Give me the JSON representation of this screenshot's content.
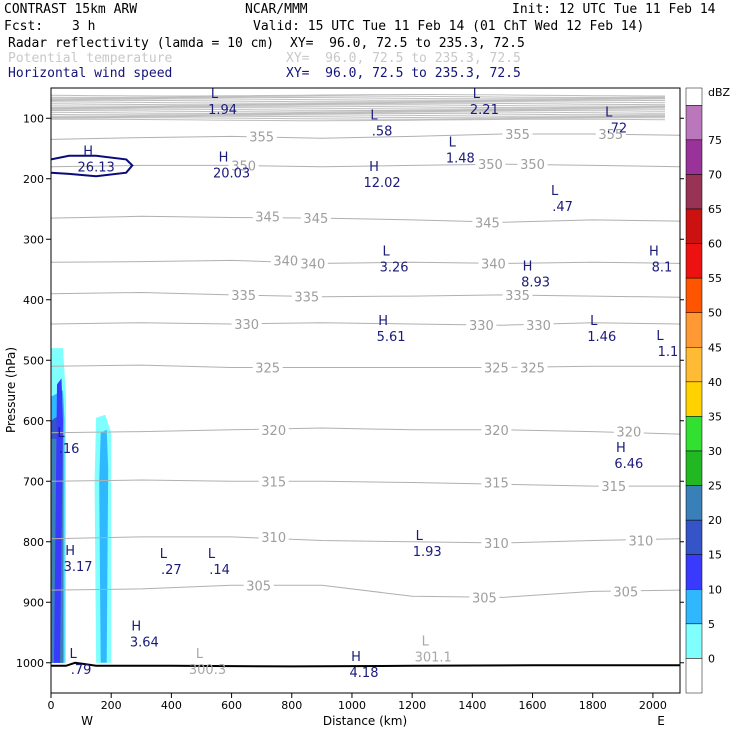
{
  "header": {
    "model": "CONTRAST 15km ARW",
    "org": "NCAR/MMM",
    "init": "Init: 12 UTC Tue 11 Feb 14",
    "fcst_label": "Fcst:",
    "fcst_value": "3 h",
    "valid": "Valid: 15 UTC Tue 11 Feb 14 (01 ChT Wed 12 Feb 14)",
    "fields": [
      {
        "name": "Radar reflectivity (lamda = 10 cm)",
        "xy": "XY=  96.0, 72.5 to 235.3, 72.5",
        "color": "#000000"
      },
      {
        "name": "Potential temperature",
        "xy": "XY=  96.0, 72.5 to 235.3, 72.5",
        "color": "#c8c8c8"
      },
      {
        "name": "Horizontal wind speed",
        "xy": "XY=  96.0, 72.5 to 235.3, 72.5",
        "color": "#14147a"
      }
    ]
  },
  "chart_data": {
    "type": "cross-section",
    "xlabel": "Distance (km)",
    "ylabel": "Pressure (hPa)",
    "xlim": [
      0,
      2090
    ],
    "ylim": [
      1050,
      50
    ],
    "xticks": [
      0,
      200,
      400,
      600,
      800,
      1000,
      1200,
      1400,
      1600,
      1800,
      2000
    ],
    "yticks": [
      100,
      200,
      300,
      400,
      500,
      600,
      700,
      800,
      900,
      1000
    ],
    "x_end_labels": {
      "left": "W",
      "right": "E"
    },
    "colorbar": {
      "unit": "dBZ",
      "levels": [
        0,
        5,
        10,
        15,
        20,
        25,
        30,
        35,
        40,
        45,
        50,
        55,
        60,
        65,
        70,
        75
      ],
      "colors": [
        "#ffffff",
        "#80ffff",
        "#30b8ff",
        "#3a3aff",
        "#3454c8",
        "#3a80b8",
        "#22b822",
        "#32e032",
        "#ffd200",
        "#ffbb33",
        "#ff9933",
        "#ff5500",
        "#ee1111",
        "#cc1111",
        "#993355",
        "#993399",
        "#bb77bb"
      ]
    },
    "isentropes": [
      {
        "value": 355,
        "points": [
          [
            0,
            135
          ],
          [
            300,
            132
          ],
          [
            600,
            130
          ],
          [
            900,
            133
          ],
          [
            1200,
            130
          ],
          [
            1500,
            126
          ],
          [
            1800,
            126
          ],
          [
            2090,
            128
          ]
        ],
        "labels": [
          [
            700,
            130
          ],
          [
            1550,
            126
          ],
          [
            1860,
            126
          ]
        ]
      },
      {
        "value": 350,
        "points": [
          [
            0,
            180
          ],
          [
            300,
            178
          ],
          [
            600,
            178
          ],
          [
            900,
            180
          ],
          [
            1200,
            178
          ],
          [
            1500,
            176
          ],
          [
            1800,
            178
          ],
          [
            2090,
            180
          ]
        ],
        "labels": [
          [
            640,
            178
          ],
          [
            1460,
            176
          ],
          [
            1600,
            176
          ]
        ]
      },
      {
        "value": 345,
        "points": [
          [
            0,
            265
          ],
          [
            300,
            262
          ],
          [
            600,
            264
          ],
          [
            900,
            265
          ],
          [
            1200,
            268
          ],
          [
            1500,
            272
          ],
          [
            1800,
            268
          ],
          [
            2090,
            270
          ]
        ],
        "labels": [
          [
            720,
            262
          ],
          [
            880,
            265
          ],
          [
            1450,
            272
          ]
        ]
      },
      {
        "value": 340,
        "points": [
          [
            0,
            338
          ],
          [
            300,
            337
          ],
          [
            600,
            335
          ],
          [
            900,
            340
          ],
          [
            1200,
            338
          ],
          [
            1500,
            340
          ],
          [
            1800,
            338
          ],
          [
            2090,
            340
          ]
        ],
        "labels": [
          [
            780,
            335
          ],
          [
            870,
            340
          ],
          [
            1470,
            340
          ]
        ]
      },
      {
        "value": 335,
        "points": [
          [
            0,
            390
          ],
          [
            300,
            388
          ],
          [
            600,
            392
          ],
          [
            900,
            395
          ],
          [
            1200,
            394
          ],
          [
            1500,
            392
          ],
          [
            1800,
            394
          ],
          [
            2090,
            396
          ]
        ],
        "labels": [
          [
            640,
            392
          ],
          [
            850,
            395
          ],
          [
            1550,
            392
          ]
        ]
      },
      {
        "value": 330,
        "points": [
          [
            0,
            440
          ],
          [
            300,
            438
          ],
          [
            600,
            440
          ],
          [
            900,
            438
          ],
          [
            1200,
            440
          ],
          [
            1500,
            442
          ],
          [
            1800,
            438
          ],
          [
            2090,
            440
          ]
        ],
        "labels": [
          [
            650,
            440
          ],
          [
            1430,
            442
          ],
          [
            1620,
            442
          ]
        ]
      },
      {
        "value": 325,
        "points": [
          [
            0,
            510
          ],
          [
            300,
            508
          ],
          [
            600,
            512
          ],
          [
            900,
            512
          ],
          [
            1200,
            512
          ],
          [
            1500,
            512
          ],
          [
            1800,
            510
          ],
          [
            2090,
            510
          ]
        ],
        "labels": [
          [
            720,
            512
          ],
          [
            1480,
            512
          ],
          [
            1600,
            512
          ]
        ]
      },
      {
        "value": 320,
        "points": [
          [
            0,
            620
          ],
          [
            300,
            618
          ],
          [
            600,
            615
          ],
          [
            900,
            612
          ],
          [
            1200,
            615
          ],
          [
            1500,
            615
          ],
          [
            1800,
            618
          ],
          [
            2090,
            622
          ]
        ],
        "labels": [
          [
            740,
            615
          ],
          [
            1480,
            615
          ],
          [
            1920,
            618
          ]
        ]
      },
      {
        "value": 315,
        "points": [
          [
            0,
            700
          ],
          [
            300,
            698
          ],
          [
            600,
            700
          ],
          [
            900,
            700
          ],
          [
            1200,
            702
          ],
          [
            1500,
            705
          ],
          [
            1800,
            708
          ],
          [
            2090,
            708
          ]
        ],
        "labels": [
          [
            740,
            700
          ],
          [
            1480,
            702
          ],
          [
            1870,
            708
          ]
        ]
      },
      {
        "value": 310,
        "points": [
          [
            0,
            795
          ],
          [
            300,
            792
          ],
          [
            600,
            792
          ],
          [
            900,
            798
          ],
          [
            1200,
            800
          ],
          [
            1500,
            802
          ],
          [
            1800,
            798
          ],
          [
            2090,
            795
          ]
        ],
        "labels": [
          [
            740,
            792
          ],
          [
            1480,
            802
          ],
          [
            1960,
            798
          ]
        ]
      },
      {
        "value": 305,
        "points": [
          [
            0,
            880
          ],
          [
            300,
            878
          ],
          [
            600,
            872
          ],
          [
            900,
            872
          ],
          [
            1200,
            890
          ],
          [
            1500,
            892
          ],
          [
            1800,
            882
          ],
          [
            2090,
            880
          ]
        ],
        "labels": [
          [
            690,
            872
          ],
          [
            1440,
            892
          ],
          [
            1910,
            882
          ]
        ]
      }
    ],
    "isentrope_labels_extra": [],
    "wind_labels": [
      {
        "type": "L",
        "value": "1.94",
        "x": 570,
        "p": 80
      },
      {
        "type": "L",
        "value": ".58",
        "x": 1100,
        "p": 115
      },
      {
        "type": "L",
        "value": "2.21",
        "x": 1440,
        "p": 80
      },
      {
        "type": "L",
        "value": ".72",
        "x": 1880,
        "p": 110
      },
      {
        "type": "H",
        "value": "26.13",
        "x": 150,
        "p": 175
      },
      {
        "type": "H",
        "value": "20.03",
        "x": 600,
        "p": 185
      },
      {
        "type": "L",
        "value": "1.48",
        "x": 1360,
        "p": 160
      },
      {
        "type": "H",
        "value": "12.02",
        "x": 1100,
        "p": 200
      },
      {
        "type": "L",
        "value": ".47",
        "x": 1700,
        "p": 240
      },
      {
        "type": "L",
        "value": "3.26",
        "x": 1140,
        "p": 340
      },
      {
        "type": "H",
        "value": "8.93",
        "x": 1610,
        "p": 365
      },
      {
        "type": "H",
        "value": "8.1",
        "x": 2030,
        "p": 340
      },
      {
        "type": "H",
        "value": "5.61",
        "x": 1130,
        "p": 455
      },
      {
        "type": "L",
        "value": "1.46",
        "x": 1830,
        "p": 455
      },
      {
        "type": "L",
        "value": "1.1",
        "x": 2050,
        "p": 480
      },
      {
        "type": "L",
        "value": ".16",
        "x": 60,
        "p": 640
      },
      {
        "type": "H",
        "value": "6.46",
        "x": 1920,
        "p": 665
      },
      {
        "type": "L",
        "value": "1.93",
        "x": 1250,
        "p": 810
      },
      {
        "type": "H",
        "value": "3.17",
        "x": 90,
        "p": 835
      },
      {
        "type": "L",
        "value": ".27",
        "x": 400,
        "p": 840
      },
      {
        "type": "L",
        "value": ".14",
        "x": 560,
        "p": 840
      },
      {
        "type": "H",
        "value": "3.64",
        "x": 310,
        "p": 960
      },
      {
        "type": "L",
        "value": ".79",
        "x": 100,
        "p": 1005
      },
      {
        "type": "H",
        "value": "4.18",
        "x": 1040,
        "p": 1010
      }
    ],
    "theta_labels": [
      {
        "type": "L",
        "value": "300.3",
        "x": 520,
        "p": 1005
      },
      {
        "type": "L",
        "value": "301.1",
        "x": 1270,
        "p": 985
      }
    ],
    "wind_contour_26": [
      [
        0,
        168
      ],
      [
        60,
        162
      ],
      [
        150,
        162
      ],
      [
        250,
        168
      ],
      [
        270,
        178
      ],
      [
        250,
        190
      ],
      [
        150,
        196
      ],
      [
        60,
        192
      ],
      [
        0,
        190
      ]
    ],
    "reflectivity": [
      {
        "level_color": "#80ffff",
        "points": [
          [
            0,
            480
          ],
          [
            40,
            480
          ],
          [
            50,
            560
          ],
          [
            50,
            1000
          ],
          [
            0,
            1000
          ]
        ]
      },
      {
        "level_color": "#30b8ff",
        "points": [
          [
            0,
            560
          ],
          [
            40,
            550
          ],
          [
            45,
            600
          ],
          [
            45,
            1000
          ],
          [
            0,
            1000
          ]
        ]
      },
      {
        "level_color": "#3454c8",
        "points": [
          [
            0,
            600
          ],
          [
            30,
            590
          ],
          [
            40,
            620
          ],
          [
            40,
            1000
          ],
          [
            0,
            1000
          ]
        ]
      },
      {
        "level_color": "#3a80b8",
        "points": [
          [
            0,
            630
          ],
          [
            40,
            630
          ],
          [
            40,
            1000
          ],
          [
            0,
            1000
          ]
        ]
      },
      {
        "level_color": "#3a3aff",
        "points": [
          [
            20,
            540
          ],
          [
            35,
            530
          ],
          [
            40,
            600
          ],
          [
            30,
            1000
          ],
          [
            10,
            1000
          ]
        ]
      },
      {
        "level_color": "#80ffff",
        "points": [
          [
            150,
            595
          ],
          [
            180,
            590
          ],
          [
            200,
            620
          ],
          [
            200,
            1000
          ],
          [
            150,
            1000
          ],
          [
            145,
            700
          ]
        ]
      },
      {
        "level_color": "#30b8ff",
        "points": [
          [
            165,
            620
          ],
          [
            185,
            615
          ],
          [
            190,
            680
          ],
          [
            185,
            1000
          ],
          [
            165,
            1000
          ],
          [
            160,
            700
          ]
        ]
      }
    ],
    "ground": [
      [
        0,
        1005
      ],
      [
        50,
        1005
      ],
      [
        80,
        1000
      ],
      [
        110,
        1002
      ],
      [
        150,
        1005
      ],
      [
        400,
        1005
      ],
      [
        800,
        1006
      ],
      [
        1200,
        1005
      ],
      [
        1600,
        1004
      ],
      [
        2090,
        1004
      ]
    ]
  }
}
